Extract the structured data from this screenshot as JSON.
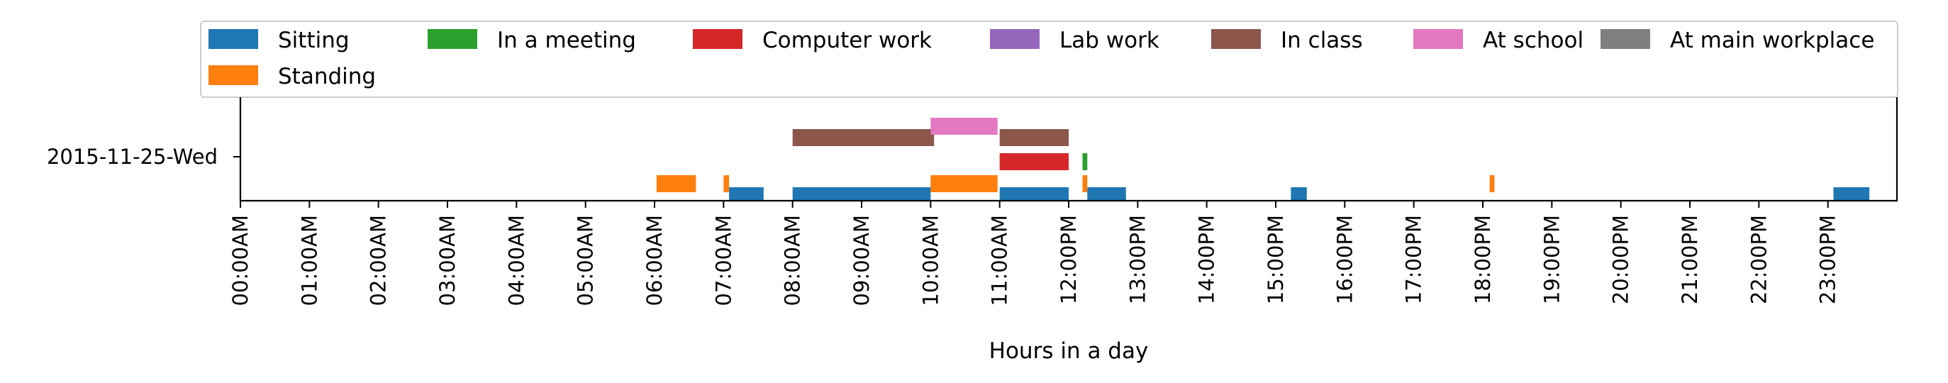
{
  "chart_data": {
    "type": "timeline",
    "xlabel": "Hours in a day",
    "ylabel": "",
    "date_label": "2015-11-25-Wed",
    "x_tick_labels": [
      "00:00AM",
      "01:00AM",
      "02:00AM",
      "03:00AM",
      "04:00AM",
      "05:00AM",
      "06:00AM",
      "07:00AM",
      "08:00AM",
      "09:00AM",
      "10:00AM",
      "11:00AM",
      "12:00PM",
      "13:00PM",
      "14:00PM",
      "15:00PM",
      "16:00PM",
      "17:00PM",
      "18:00PM",
      "19:00PM",
      "20:00PM",
      "21:00PM",
      "22:00PM",
      "23:00PM"
    ],
    "xlim_hours": [
      0,
      24
    ],
    "legend_position": "top",
    "grid": false,
    "series": [
      {
        "name": "Sitting",
        "color": "#1f77b4",
        "lane": 0,
        "intervals": [
          [
            7.08,
            7.58
          ],
          [
            8.0,
            10.0
          ],
          [
            11.0,
            12.0
          ],
          [
            12.27,
            12.83
          ],
          [
            15.22,
            15.45
          ],
          [
            23.08,
            23.6
          ]
        ]
      },
      {
        "name": "In a meeting",
        "color": "#2ca02c",
        "lane": 1,
        "intervals": [
          [
            12.2,
            12.27
          ]
        ]
      },
      {
        "name": "Computer work",
        "color": "#d62728",
        "lane": 1,
        "intervals": [
          [
            11.0,
            12.0
          ]
        ]
      },
      {
        "name": "Lab work",
        "color": "#9467bd",
        "lane": 0,
        "intervals": []
      },
      {
        "name": "In class",
        "color": "#8c564b",
        "lane": 2,
        "intervals": [
          [
            8.0,
            10.05
          ],
          [
            11.0,
            12.0
          ]
        ]
      },
      {
        "name": "At school",
        "color": "#e377c2",
        "lane": 2.5,
        "intervals": [
          [
            10.0,
            10.97
          ]
        ]
      },
      {
        "name": "At main workplace",
        "color": "#7f7f7f",
        "lane": 0,
        "intervals": []
      },
      {
        "name": "Standing",
        "color": "#ff7f0e",
        "lane": 0.5,
        "intervals": [
          [
            6.03,
            6.6
          ],
          [
            7.0,
            7.08
          ],
          [
            10.0,
            10.97
          ],
          [
            12.2,
            12.27
          ],
          [
            18.1,
            18.17
          ]
        ]
      }
    ]
  }
}
